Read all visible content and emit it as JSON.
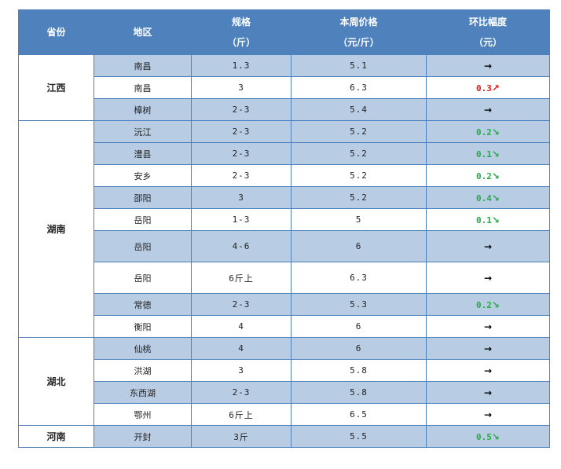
{
  "header": {
    "province": "省份",
    "region": "地区",
    "spec_line1": "规格",
    "spec_line2": "（斤）",
    "price_line1": "本周价格",
    "price_line2": "（元/斤）",
    "change_line1": "环比幅度",
    "change_line2": "（元）"
  },
  "colors": {
    "header_bg": "#4f81bd",
    "row_shade": "#b8cce4",
    "up": "#e0191b",
    "down": "#2aa84a"
  },
  "provinces": [
    "江西",
    "湖南",
    "湖北",
    "河南"
  ],
  "rows": [
    {
      "region": "南昌",
      "spec": "1.3",
      "price": "5.1",
      "change": "",
      "arrow": "→",
      "dir": "flat"
    },
    {
      "region": "南昌",
      "spec": "3",
      "price": "6.3",
      "change": "0.3",
      "arrow": "↗",
      "dir": "up"
    },
    {
      "region": "樟树",
      "spec": "2-3",
      "price": "5.4",
      "change": "",
      "arrow": "→",
      "dir": "flat"
    },
    {
      "region": "沅江",
      "spec": "2-3",
      "price": "5.2",
      "change": "0.2",
      "arrow": "↘",
      "dir": "down"
    },
    {
      "region": "澧县",
      "spec": "2-3",
      "price": "5.2",
      "change": "0.1",
      "arrow": "↘",
      "dir": "down"
    },
    {
      "region": "安乡",
      "spec": "2-3",
      "price": "5.2",
      "change": "0.2",
      "arrow": "↘",
      "dir": "down"
    },
    {
      "region": "邵阳",
      "spec": "3",
      "price": "5.2",
      "change": "0.4",
      "arrow": "↘",
      "dir": "down"
    },
    {
      "region": "岳阳",
      "spec": "1-3",
      "price": "5",
      "change": "0.1",
      "arrow": "↘",
      "dir": "down"
    },
    {
      "region": "岳阳",
      "spec": "4-6",
      "price": "6",
      "change": "",
      "arrow": "→",
      "dir": "flat"
    },
    {
      "region": "岳阳",
      "spec": "6斤上",
      "price": "6.3",
      "change": "",
      "arrow": "→",
      "dir": "flat"
    },
    {
      "region": "常德",
      "spec": "2-3",
      "price": "5.3",
      "change": "0.2",
      "arrow": "↘",
      "dir": "down"
    },
    {
      "region": "衡阳",
      "spec": "4",
      "price": "6",
      "change": "",
      "arrow": "→",
      "dir": "flat"
    },
    {
      "region": "仙桃",
      "spec": "4",
      "price": "6",
      "change": "",
      "arrow": "→",
      "dir": "flat"
    },
    {
      "region": "洪湖",
      "spec": "3",
      "price": "5.8",
      "change": "",
      "arrow": "→",
      "dir": "flat"
    },
    {
      "region": "东西湖",
      "spec": "2-3",
      "price": "5.8",
      "change": "",
      "arrow": "→",
      "dir": "flat"
    },
    {
      "region": "鄂州",
      "spec": "6斤上",
      "price": "6.5",
      "change": "",
      "arrow": "→",
      "dir": "flat"
    },
    {
      "region": "开封",
      "spec": "3斤",
      "price": "5.5",
      "change": "0.5",
      "arrow": "↘",
      "dir": "down"
    }
  ]
}
